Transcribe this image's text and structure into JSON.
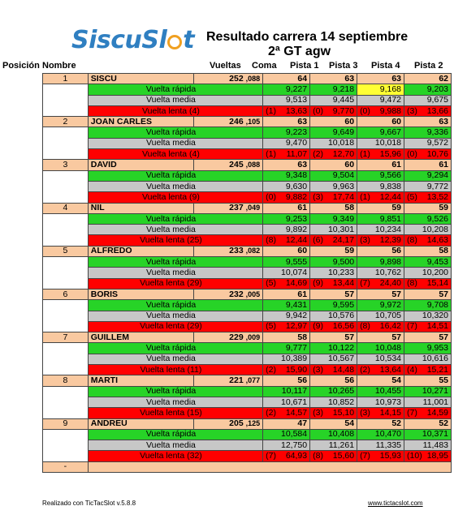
{
  "logo": {
    "part1": "Siscu",
    "part2": "Sl",
    "part3": "t"
  },
  "title": "Resultado carrera 14 septiembre",
  "subtitle": "2ª GT agw",
  "headers": {
    "posicion": "Posición",
    "nombre": "Nombre",
    "vueltas": "Vueltas",
    "coma": "Coma",
    "p1": "Pista 1",
    "p3": "Pista 3",
    "p4": "Pista 4",
    "p2": "Pista 2"
  },
  "labels": {
    "rapida": "Vuelta rápida",
    "media": "Vuelta media",
    "lenta": "Vuelta  lenta"
  },
  "racers": [
    {
      "pos": "1",
      "name": "SISCU",
      "laps": "252",
      "coma": ",088",
      "tracks": [
        "64",
        "63",
        "63",
        "62"
      ],
      "fast": [
        "9,227",
        "9,218",
        "9,168",
        "9,203"
      ],
      "avg": [
        "9,513",
        "9,445",
        "9,472",
        "9,675"
      ],
      "slow_n": "(4)",
      "slow": [
        [
          "(1)",
          "13,63"
        ],
        [
          "(0)",
          "9,770"
        ],
        [
          "(0)",
          "9,988"
        ],
        [
          "(3)",
          "13,66"
        ]
      ]
    },
    {
      "pos": "2",
      "name": "JOAN CARLES",
      "laps": "246",
      "coma": ",105",
      "tracks": [
        "63",
        "60",
        "60",
        "63"
      ],
      "fast": [
        "9,223",
        "9,649",
        "9,667",
        "9,336"
      ],
      "avg": [
        "9,470",
        "10,018",
        "10,018",
        "9,572"
      ],
      "slow_n": "(4)",
      "slow": [
        [
          "(1)",
          "11,07"
        ],
        [
          "(2)",
          "12,70"
        ],
        [
          "(1)",
          "15,96"
        ],
        [
          "(0)",
          "10,76"
        ]
      ]
    },
    {
      "pos": "3",
      "name": "DAVID",
      "laps": "245",
      "coma": ",088",
      "tracks": [
        "63",
        "60",
        "61",
        "61"
      ],
      "fast": [
        "9,348",
        "9,504",
        "9,566",
        "9,294"
      ],
      "avg": [
        "9,630",
        "9,963",
        "9,838",
        "9,772"
      ],
      "slow_n": "(9)",
      "slow": [
        [
          "(0)",
          "9,882"
        ],
        [
          "(3)",
          "17,74"
        ],
        [
          "(1)",
          "12,44"
        ],
        [
          "(5)",
          "13,52"
        ]
      ]
    },
    {
      "pos": "4",
      "name": "NIL",
      "laps": "237",
      "coma": ",049",
      "tracks": [
        "61",
        "58",
        "59",
        "59"
      ],
      "fast": [
        "9,253",
        "9,349",
        "9,851",
        "9,526"
      ],
      "avg": [
        "9,892",
        "10,301",
        "10,234",
        "10,208"
      ],
      "slow_n": "(25)",
      "slow": [
        [
          "(8)",
          "12,44"
        ],
        [
          "(6)",
          "24,17"
        ],
        [
          "(3)",
          "12,39"
        ],
        [
          "(8)",
          "14,63"
        ]
      ]
    },
    {
      "pos": "5",
      "name": "ALFREDO",
      "laps": "233",
      "coma": ",082",
      "tracks": [
        "60",
        "59",
        "56",
        "58"
      ],
      "fast": [
        "9,555",
        "9,500",
        "9,898",
        "9,453"
      ],
      "avg": [
        "10,074",
        "10,233",
        "10,762",
        "10,200"
      ],
      "slow_n": "(29)",
      "slow": [
        [
          "(5)",
          "14,69"
        ],
        [
          "(9)",
          "13,44"
        ],
        [
          "(7)",
          "24,40"
        ],
        [
          "(8)",
          "15,14"
        ]
      ]
    },
    {
      "pos": "6",
      "name": "BORIS",
      "laps": "232",
      "coma": ",005",
      "tracks": [
        "61",
        "57",
        "57",
        "57"
      ],
      "fast": [
        "9,431",
        "9,595",
        "9,972",
        "9,708"
      ],
      "avg": [
        "9,942",
        "10,576",
        "10,705",
        "10,320"
      ],
      "slow_n": "(29)",
      "slow": [
        [
          "(5)",
          "12,97"
        ],
        [
          "(9)",
          "16,56"
        ],
        [
          "(8)",
          "16,42"
        ],
        [
          "(7)",
          "14,51"
        ]
      ]
    },
    {
      "pos": "7",
      "name": "GUILLEM",
      "laps": "229",
      "coma": ",009",
      "tracks": [
        "58",
        "57",
        "57",
        "57"
      ],
      "fast": [
        "9,777",
        "10,122",
        "10,048",
        "9,953"
      ],
      "avg": [
        "10,389",
        "10,567",
        "10,534",
        "10,616"
      ],
      "slow_n": "(11)",
      "slow": [
        [
          "(2)",
          "15,90"
        ],
        [
          "(3)",
          "14,48"
        ],
        [
          "(2)",
          "13,64"
        ],
        [
          "(4)",
          "15,21"
        ]
      ]
    },
    {
      "pos": "8",
      "name": "MARTI",
      "laps": "221",
      "coma": ",077",
      "tracks": [
        "56",
        "56",
        "54",
        "55"
      ],
      "fast": [
        "10,117",
        "10,265",
        "10,455",
        "10,271"
      ],
      "avg": [
        "10,671",
        "10,852",
        "10,973",
        "11,001"
      ],
      "slow_n": "(15)",
      "slow": [
        [
          "(2)",
          "14,57"
        ],
        [
          "(3)",
          "15,10"
        ],
        [
          "(3)",
          "14,15"
        ],
        [
          "(7)",
          "14,59"
        ]
      ]
    },
    {
      "pos": "9",
      "name": "ANDREU",
      "laps": "205",
      "coma": ",125",
      "tracks": [
        "47",
        "54",
        "52",
        "52"
      ],
      "fast": [
        "10,584",
        "10,408",
        "10,470",
        "10,371"
      ],
      "avg": [
        "12,750",
        "11,261",
        "11,335",
        "11,483"
      ],
      "slow_n": "(32)",
      "slow": [
        [
          "(7)",
          "64,93"
        ],
        [
          "(8)",
          "15,60"
        ],
        [
          "(7)",
          "15,93"
        ],
        [
          "(10)",
          "18,95"
        ]
      ]
    }
  ],
  "last_pos": "-",
  "footer_left": "Realizado con TicTacSlot v.5.8.8",
  "footer_right": "www.tictacslot.com",
  "colors": {
    "main_row": "#f9c9a0",
    "fast": "#27d327",
    "avg": "#c7c7c7",
    "slow": "#ff0000",
    "highlight": "#ffff33",
    "logo": "#2f7fc1"
  }
}
